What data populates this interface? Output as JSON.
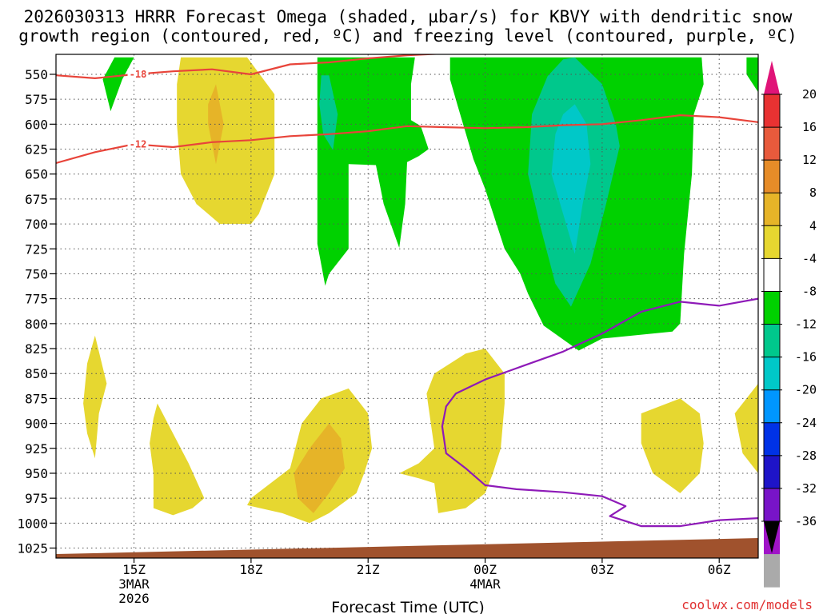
{
  "chart_data": {
    "type": "heatmap",
    "title_line1": "2026030313 HRRR Forecast Omega (shaded, µbar/s) for KBVY with dendritic snow",
    "title_line2": "growth region (contoured, red, ºC) and freezing level (contoured, purple, ºC)",
    "xlabel": "Forecast Time (UTC)",
    "credit": "coolwx.com/models",
    "x_ticks": [
      {
        "hour": 15,
        "label": "15Z",
        "sub1": "3MAR",
        "sub2": "2026"
      },
      {
        "hour": 18,
        "label": "18Z",
        "sub1": "",
        "sub2": ""
      },
      {
        "hour": 21,
        "label": "21Z",
        "sub1": "",
        "sub2": ""
      },
      {
        "hour": 24,
        "label": "00Z",
        "sub1": "4MAR",
        "sub2": ""
      },
      {
        "hour": 27,
        "label": "03Z",
        "sub1": "",
        "sub2": ""
      },
      {
        "hour": 30,
        "label": "06Z",
        "sub1": "",
        "sub2": ""
      }
    ],
    "x_range_hours": [
      13,
      31
    ],
    "y_range_hpa": [
      530,
      1035
    ],
    "y_ticks": [
      550,
      575,
      600,
      625,
      650,
      675,
      700,
      725,
      750,
      775,
      800,
      825,
      850,
      875,
      900,
      925,
      950,
      975,
      1000,
      1025
    ],
    "grid": "dotted",
    "colorbar": {
      "labels": [
        "20",
        "16",
        "12",
        "8",
        "4",
        "-4",
        "-8",
        "-12",
        "-16",
        "-20",
        "-24",
        "-28",
        "-32",
        "-36"
      ],
      "colors": [
        "#ffffff",
        "#00d100",
        "#00c88c",
        "#00c8c8",
        "#0096ff",
        "#0032e6",
        "#1e14c8",
        "#7814c8",
        "#a014c8",
        "#aaaaaa"
      ],
      "colors_positive": [
        "#e6d730",
        "#e6b428",
        "#e68c28",
        "#e85a3c",
        "#e83232"
      ],
      "top_arrow": "#e01478",
      "bottom_arrow": "#000000"
    },
    "series": [
      {
        "name": "Dendritic growth region -18C",
        "color": "#e8443a",
        "label": "-18",
        "points": [
          [
            13,
            551
          ],
          [
            14,
            554
          ],
          [
            15,
            550
          ],
          [
            16,
            547
          ],
          [
            17,
            545
          ],
          [
            18,
            550
          ],
          [
            19,
            540
          ],
          [
            20,
            538
          ],
          [
            21,
            534
          ],
          [
            22,
            531
          ],
          [
            23,
            529
          ],
          [
            24,
            528
          ],
          [
            25,
            528
          ],
          [
            26,
            529
          ],
          [
            27,
            528
          ],
          [
            28,
            528
          ]
        ]
      },
      {
        "name": "Dendritic growth region -12C",
        "color": "#e8443a",
        "label": "-12",
        "points": [
          [
            13,
            639
          ],
          [
            14,
            628
          ],
          [
            15,
            620
          ],
          [
            16,
            623
          ],
          [
            17,
            618
          ],
          [
            18,
            616
          ],
          [
            19,
            612
          ],
          [
            20,
            610
          ],
          [
            21,
            607
          ],
          [
            22,
            602
          ],
          [
            23,
            603
          ],
          [
            24,
            604
          ],
          [
            25,
            603
          ],
          [
            26,
            601
          ],
          [
            27,
            600
          ],
          [
            28,
            596
          ],
          [
            29,
            591
          ],
          [
            30,
            593
          ],
          [
            31,
            598
          ]
        ]
      },
      {
        "name": "Freezing level 0C",
        "color": "#8e1ab8",
        "label": "",
        "points": [
          [
            31,
            775
          ],
          [
            30,
            782
          ],
          [
            29,
            778
          ],
          [
            28,
            788
          ],
          [
            27,
            810
          ],
          [
            26,
            828
          ],
          [
            25,
            842
          ],
          [
            24,
            856
          ],
          [
            23.25,
            870
          ],
          [
            23,
            883
          ],
          [
            22.9,
            903
          ],
          [
            23,
            930
          ],
          [
            23.5,
            945
          ],
          [
            24,
            962
          ],
          [
            24.8,
            966
          ],
          [
            26,
            969
          ],
          [
            27,
            973
          ],
          [
            27.6,
            983
          ],
          [
            27.2,
            993
          ],
          [
            28,
            1003
          ],
          [
            29,
            1003
          ],
          [
            30,
            997
          ],
          [
            31,
            995
          ]
        ]
      }
    ],
    "regions": [
      {
        "value": "-4 to -8",
        "color": "#00d100",
        "points": [
          [
            14.5,
            533
          ],
          [
            15,
            533
          ],
          [
            14.7,
            555
          ],
          [
            14.4,
            587
          ],
          [
            14.2,
            555
          ]
        ]
      },
      {
        "value": "-4 to -8",
        "color": "#00d100",
        "points": [
          [
            20.45,
            533
          ],
          [
            22.2,
            533
          ],
          [
            22.1,
            560
          ],
          [
            22.1,
            596
          ],
          [
            22.35,
            602
          ],
          [
            22.55,
            625
          ],
          [
            22.3,
            632
          ],
          [
            22.0,
            638
          ],
          [
            21.95,
            680
          ],
          [
            21.8,
            724
          ],
          [
            21.4,
            680
          ],
          [
            21.2,
            641
          ],
          [
            20.5,
            640
          ],
          [
            20.5,
            690
          ],
          [
            20.5,
            725
          ],
          [
            20.0,
            750
          ],
          [
            19.9,
            762
          ],
          [
            19.7,
            720
          ],
          [
            19.7,
            650
          ],
          [
            19.7,
            533
          ]
        ]
      },
      {
        "value": "-4 to -8",
        "color": "#00d100",
        "points": [
          [
            23.1,
            533
          ],
          [
            29.55,
            533
          ],
          [
            29.6,
            560
          ],
          [
            29.35,
            590
          ],
          [
            29.3,
            650
          ],
          [
            29.1,
            730
          ],
          [
            29.0,
            800
          ],
          [
            28.8,
            808
          ],
          [
            27.0,
            815
          ],
          [
            26.4,
            827
          ],
          [
            25.5,
            802
          ],
          [
            25.1,
            770
          ],
          [
            24.9,
            750
          ],
          [
            24.5,
            725
          ],
          [
            24.0,
            665
          ],
          [
            23.7,
            635
          ],
          [
            23.3,
            582
          ],
          [
            23.1,
            555
          ]
        ]
      },
      {
        "value": "-4 to -8",
        "color": "#00d100",
        "points": [
          [
            30.7,
            533
          ],
          [
            31,
            533
          ],
          [
            31,
            568
          ],
          [
            30.7,
            550
          ]
        ]
      },
      {
        "value": "-8 to -12",
        "color": "#00c88c",
        "points": [
          [
            19.8,
            551
          ],
          [
            20.0,
            551
          ],
          [
            20.22,
            590
          ],
          [
            20.1,
            626
          ],
          [
            19.85,
            610
          ],
          [
            19.75,
            580
          ]
        ]
      },
      {
        "value": "-8 to -12",
        "color": "#00c88c",
        "points": [
          [
            26.3,
            533
          ],
          [
            27.0,
            560
          ],
          [
            27.35,
            600
          ],
          [
            27.45,
            622
          ],
          [
            27.1,
            680
          ],
          [
            26.7,
            740
          ],
          [
            26.2,
            783
          ],
          [
            25.8,
            760
          ],
          [
            25.4,
            700
          ],
          [
            25.1,
            650
          ],
          [
            25.2,
            590
          ],
          [
            25.6,
            552
          ],
          [
            26.0,
            535
          ]
        ]
      },
      {
        "value": "-12 to -16",
        "color": "#00c8c8",
        "points": [
          [
            26.3,
            580
          ],
          [
            26.6,
            600
          ],
          [
            26.7,
            640
          ],
          [
            26.5,
            680
          ],
          [
            26.3,
            730
          ],
          [
            26.0,
            690
          ],
          [
            25.7,
            650
          ],
          [
            25.8,
            610
          ],
          [
            26.0,
            590
          ]
        ]
      },
      {
        "value": "4 to 8",
        "color": "#e6d730",
        "points": [
          [
            16.2,
            533
          ],
          [
            17.9,
            533
          ],
          [
            18.6,
            570
          ],
          [
            18.6,
            650
          ],
          [
            18.2,
            690
          ],
          [
            18.0,
            700
          ],
          [
            17.2,
            700
          ],
          [
            16.6,
            680
          ],
          [
            16.2,
            650
          ],
          [
            16.1,
            600
          ],
          [
            16.1,
            560
          ]
        ]
      },
      {
        "value": "4 to 8",
        "color": "#e6d730",
        "points": [
          [
            14.0,
            812
          ],
          [
            14.3,
            860
          ],
          [
            14.1,
            890
          ],
          [
            14.0,
            935
          ],
          [
            13.8,
            910
          ],
          [
            13.7,
            880
          ],
          [
            13.8,
            840
          ]
        ]
      },
      {
        "value": "4 to 8",
        "color": "#e6d730",
        "points": [
          [
            15.6,
            880
          ],
          [
            16.0,
            910
          ],
          [
            16.4,
            940
          ],
          [
            16.8,
            975
          ],
          [
            16.5,
            985
          ],
          [
            16.0,
            992
          ],
          [
            15.5,
            985
          ],
          [
            15.5,
            950
          ],
          [
            15.4,
            920
          ],
          [
            15.5,
            895
          ]
        ]
      },
      {
        "value": "4 to 8",
        "color": "#e6d730",
        "points": [
          [
            18.0,
            975
          ],
          [
            19.0,
            945
          ],
          [
            19.3,
            900
          ],
          [
            19.8,
            875
          ],
          [
            20.5,
            865
          ],
          [
            21.0,
            890
          ],
          [
            21.1,
            925
          ],
          [
            20.9,
            950
          ],
          [
            20.7,
            970
          ],
          [
            20.0,
            990
          ],
          [
            19.5,
            1000
          ],
          [
            18.8,
            990
          ],
          [
            17.9,
            982
          ]
        ]
      },
      {
        "value": "4 to 8",
        "color": "#e6d730",
        "points": [
          [
            22.7,
            850
          ],
          [
            23.5,
            830
          ],
          [
            24.0,
            825
          ],
          [
            24.5,
            850
          ],
          [
            24.5,
            880
          ],
          [
            24.4,
            925
          ],
          [
            24.2,
            950
          ],
          [
            24.0,
            970
          ],
          [
            23.5,
            985
          ],
          [
            22.8,
            990
          ],
          [
            22.7,
            960
          ],
          [
            22.3,
            955
          ],
          [
            21.8,
            950
          ],
          [
            22.3,
            940
          ],
          [
            22.7,
            925
          ],
          [
            22.5,
            870
          ]
        ]
      },
      {
        "value": "4 to 8",
        "color": "#e6d730",
        "points": [
          [
            28.0,
            890
          ],
          [
            29.0,
            875
          ],
          [
            29.5,
            890
          ],
          [
            29.6,
            920
          ],
          [
            29.5,
            950
          ],
          [
            29.0,
            970
          ],
          [
            28.3,
            950
          ],
          [
            28.0,
            920
          ]
        ]
      },
      {
        "value": "4 to 8",
        "color": "#e6d730",
        "points": [
          [
            31.0,
            860
          ],
          [
            31.0,
            950
          ],
          [
            30.6,
            930
          ],
          [
            30.4,
            890
          ]
        ]
      },
      {
        "value": "8 to 12",
        "color": "#e6b428",
        "points": [
          [
            17.1,
            560
          ],
          [
            17.3,
            600
          ],
          [
            17.1,
            640
          ],
          [
            16.9,
            600
          ],
          [
            16.9,
            580
          ]
        ]
      },
      {
        "value": "8 to 12",
        "color": "#e6b428",
        "points": [
          [
            20.0,
            900
          ],
          [
            20.3,
            915
          ],
          [
            20.4,
            945
          ],
          [
            20.0,
            970
          ],
          [
            19.6,
            990
          ],
          [
            19.2,
            975
          ],
          [
            19.1,
            950
          ],
          [
            19.5,
            925
          ]
        ]
      }
    ],
    "terrain": {
      "color": "#a0522d",
      "top_hpa_start": 1031,
      "top_hpa_end": 1015
    }
  }
}
